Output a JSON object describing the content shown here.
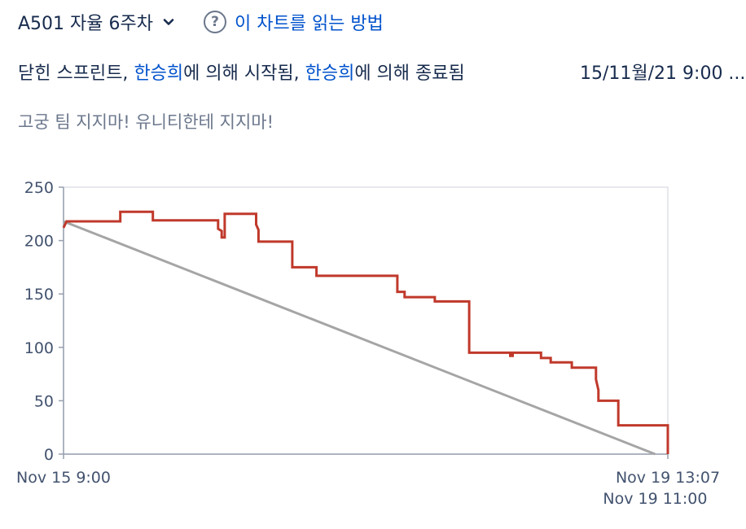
{
  "header": {
    "sprint_name": "A501 자율 6주차",
    "help_link": "이 차트를 읽는 방법",
    "help_glyph": "?"
  },
  "meta": {
    "status_prefix": "닫힌 스프린트,",
    "started_by": "한승희",
    "started_suffix": "에 의해 시작됨,",
    "ended_by": "한승희",
    "ended_suffix": "에 의해 종료됨",
    "date_range": "15/11월/21 9:00 ..."
  },
  "goal": "고궁 팀 지지마! 유니티한테 지지마!",
  "colors": {
    "remaining": "#c0392b",
    "guideline": "#a5a5a5",
    "link": "#0052cc",
    "muted": "#6b778c"
  },
  "chart_data": {
    "type": "line",
    "ylim": [
      0,
      250
    ],
    "yticks": [
      "0",
      "50",
      "100",
      "150",
      "200",
      "250"
    ],
    "xlim_hours": [
      0,
      100.1
    ],
    "x_tick_labels": [
      {
        "label": "Nov 15 9:00",
        "hours": 0,
        "row": 0
      },
      {
        "label": "Nov 19 13:07",
        "hours": 100.1,
        "row": 0
      },
      {
        "label": "Nov 19 11:00",
        "hours": 98,
        "row": 1
      }
    ],
    "series": [
      {
        "key": "remaining",
        "points": [
          [
            0,
            212
          ],
          [
            0.5,
            218
          ],
          [
            9.4,
            218
          ],
          [
            9.4,
            227
          ],
          [
            14.8,
            227
          ],
          [
            14.8,
            219
          ],
          [
            25.6,
            219
          ],
          [
            25.6,
            211
          ],
          [
            26.2,
            209
          ],
          [
            26.2,
            203
          ],
          [
            26.7,
            203
          ],
          [
            26.7,
            225
          ],
          [
            31.9,
            225
          ],
          [
            31.9,
            215
          ],
          [
            32.3,
            210
          ],
          [
            32.3,
            199
          ],
          [
            37.9,
            199
          ],
          [
            37.9,
            175
          ],
          [
            41.9,
            175
          ],
          [
            41.9,
            167
          ],
          [
            55.3,
            167
          ],
          [
            55.3,
            152
          ],
          [
            56.5,
            152
          ],
          [
            56.5,
            147
          ],
          [
            61.5,
            147
          ],
          [
            61.5,
            143
          ],
          [
            67.2,
            143
          ],
          [
            67.2,
            95
          ],
          [
            74.0,
            95
          ],
          [
            74.0,
            92
          ],
          [
            74.4,
            92
          ],
          [
            74.4,
            95
          ],
          [
            79.1,
            95
          ],
          [
            79.1,
            90
          ],
          [
            80.7,
            90
          ],
          [
            80.7,
            86
          ],
          [
            84.2,
            86
          ],
          [
            84.2,
            81
          ],
          [
            88.2,
            81
          ],
          [
            88.2,
            70
          ],
          [
            88.6,
            60
          ],
          [
            88.6,
            50
          ],
          [
            91.9,
            50
          ],
          [
            91.9,
            27
          ],
          [
            100.1,
            27
          ],
          [
            100.1,
            0
          ]
        ]
      },
      {
        "key": "guideline",
        "points": [
          [
            0,
            218
          ],
          [
            98,
            0
          ]
        ]
      }
    ]
  }
}
